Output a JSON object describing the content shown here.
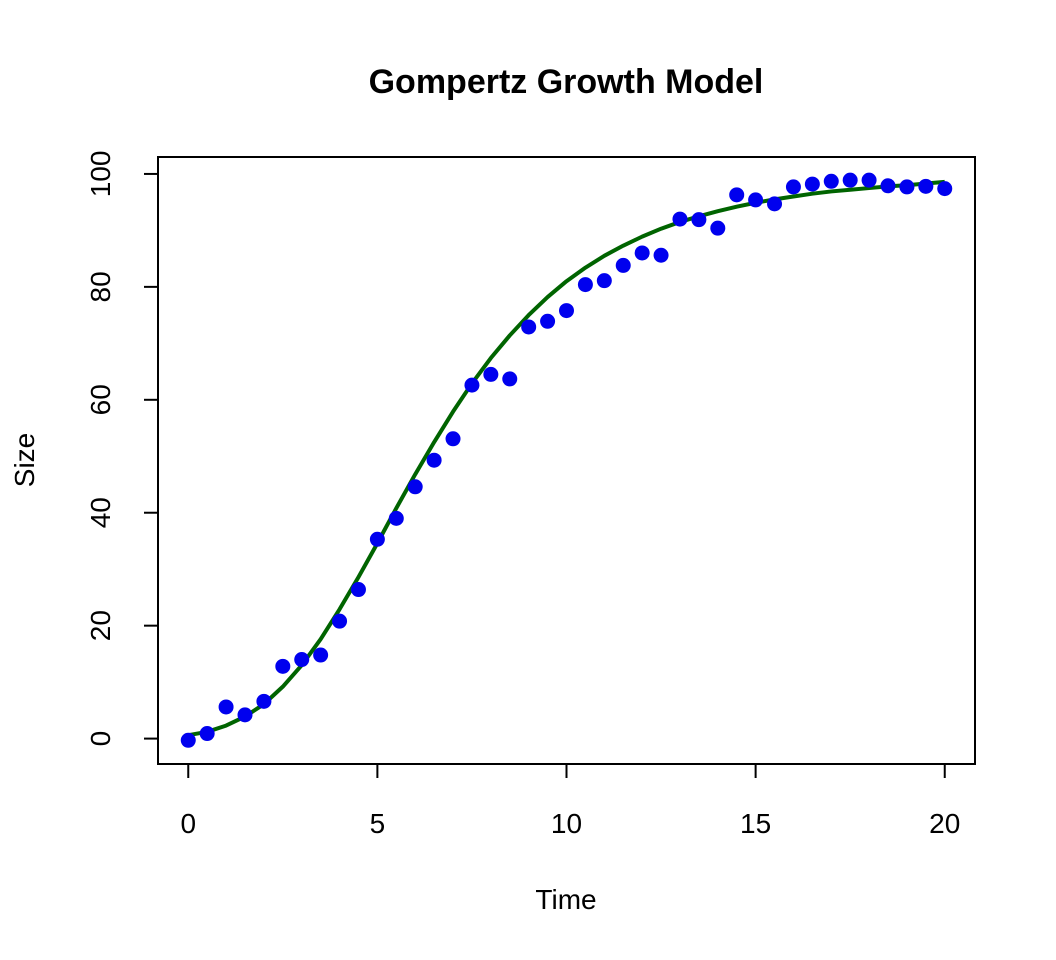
{
  "chart_data": {
    "type": "scatter",
    "title": "Gompertz Growth Model",
    "xlabel": "Time",
    "ylabel": "Size",
    "xlim": [
      -0.8,
      20.8
    ],
    "ylim": [
      -4.5,
      103
    ],
    "x_ticks": [
      0,
      5,
      10,
      15,
      20
    ],
    "y_ticks": [
      0,
      20,
      40,
      60,
      80,
      100
    ],
    "x_tick_labels": [
      "0",
      "5",
      "10",
      "15",
      "20"
    ],
    "y_tick_labels": [
      "0",
      "20",
      "40",
      "60",
      "80",
      "100"
    ],
    "grid": false,
    "legend": "none",
    "series": [
      {
        "kind": "points",
        "color": "#0000ee",
        "x": [
          0,
          0.5,
          1,
          1.5,
          2,
          2.5,
          3,
          3.5,
          4,
          4.5,
          5,
          5.5,
          6,
          6.5,
          7,
          7.5,
          8,
          8.5,
          9,
          9.5,
          10,
          10.5,
          11,
          11.5,
          12,
          12.5,
          13,
          13.5,
          14,
          14.5,
          15,
          15.5,
          16,
          16.5,
          17,
          17.5,
          18,
          18.5,
          19,
          19.5,
          20
        ],
        "y": [
          -0.3,
          0.9,
          5.6,
          4.2,
          6.6,
          12.8,
          14.0,
          14.8,
          20.8,
          26.4,
          35.3,
          39.0,
          44.6,
          49.3,
          53.1,
          62.6,
          64.5,
          63.7,
          72.9,
          73.9,
          75.8,
          80.4,
          81.1,
          83.8,
          86.0,
          85.6,
          92.0,
          91.9,
          90.4,
          96.3,
          95.4,
          94.7,
          97.7,
          98.2,
          98.7,
          98.9,
          98.9,
          97.9,
          97.7,
          97.8,
          97.4
        ]
      },
      {
        "kind": "curve",
        "color": "#006400",
        "x": [
          0,
          0.5,
          1,
          1.5,
          2,
          2.5,
          3,
          3.5,
          4,
          4.5,
          5,
          5.5,
          6,
          6.5,
          7,
          7.5,
          8,
          8.5,
          9,
          9.5,
          10,
          10.5,
          11,
          11.5,
          12,
          12.5,
          13,
          13.5,
          14,
          14.5,
          15,
          15.5,
          16,
          16.5,
          17,
          17.5,
          18,
          18.5,
          19,
          19.5,
          20
        ],
        "y": [
          0.6,
          1.2,
          2.3,
          3.9,
          6.1,
          9.2,
          13.0,
          17.6,
          22.9,
          28.6,
          34.6,
          40.8,
          46.8,
          52.5,
          57.9,
          62.9,
          67.4,
          71.4,
          75.0,
          78.2,
          81.0,
          83.4,
          85.5,
          87.3,
          88.9,
          90.3,
          91.5,
          92.5,
          93.4,
          94.2,
          94.9,
          95.5,
          96.0,
          96.5,
          96.9,
          97.2,
          97.5,
          97.8,
          98.0,
          98.3,
          98.6
        ]
      }
    ]
  }
}
